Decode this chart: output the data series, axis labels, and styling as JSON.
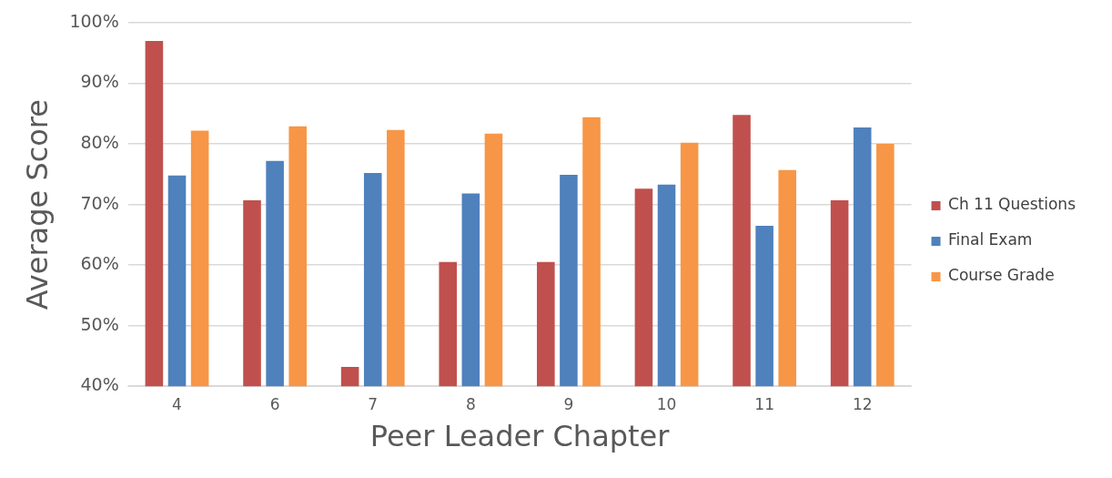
{
  "chart_data": {
    "type": "bar",
    "xlabel": "Peer Leader Chapter",
    "ylabel": "Average Score",
    "categories": [
      "4",
      "6",
      "7",
      "8",
      "9",
      "10",
      "11",
      "12"
    ],
    "series": [
      {
        "name": "Ch 11 Questions",
        "color": "#c0504d",
        "values": [
          97,
          70.7,
          43.2,
          60.5,
          60.5,
          72.6,
          84.8,
          70.7
        ]
      },
      {
        "name": "Final Exam",
        "color": "#4f81bd",
        "values": [
          74.8,
          77.2,
          75.2,
          71.8,
          74.9,
          73.3,
          66.5,
          82.7
        ]
      },
      {
        "name": "Course Grade",
        "color": "#f79646",
        "values": [
          82.2,
          82.9,
          82.3,
          81.7,
          84.4,
          80.2,
          75.7,
          80
        ]
      }
    ],
    "ylim": [
      40,
      100
    ],
    "yticks": [
      {
        "value": 40,
        "label": "40%"
      },
      {
        "value": 50,
        "label": "50%"
      },
      {
        "value": 60,
        "label": "60%"
      },
      {
        "value": 70,
        "label": "70%"
      },
      {
        "value": 80,
        "label": "80%"
      },
      {
        "value": 90,
        "label": "90%"
      },
      {
        "value": 100,
        "label": "100%"
      }
    ],
    "grid": "y",
    "legend": "right"
  }
}
